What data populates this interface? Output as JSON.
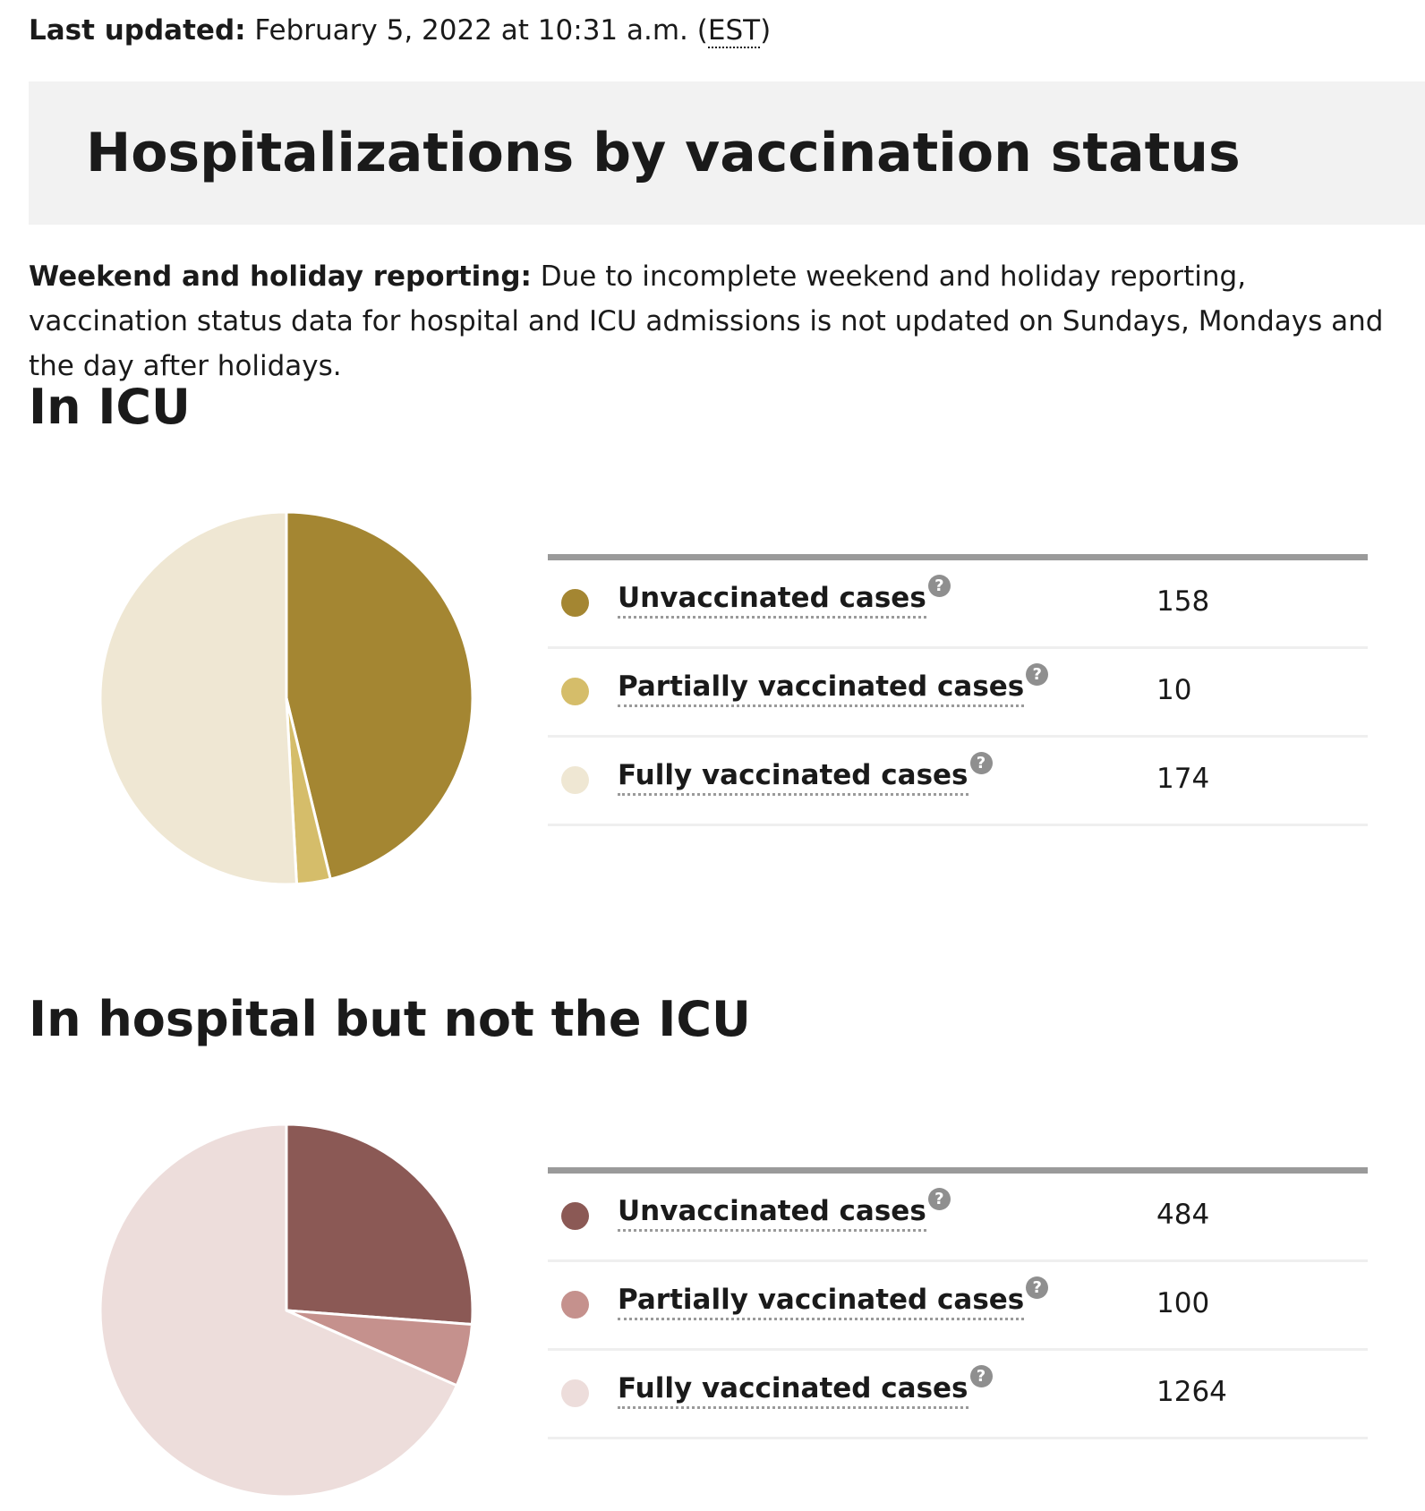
{
  "last_updated": {
    "label": "Last updated:",
    "date_text": " February 5, 2022 at 10:31 a.m. (",
    "timezone": "EST",
    "close_text": ")"
  },
  "page_title": "Hospitalizations by vaccination status",
  "notice": {
    "label": "Weekend and holiday reporting:",
    "text": " Due to incomplete weekend and holiday reporting, vaccination status data for hospital and ICU admissions is not updated on Sundays, Mondays and the day after holidays."
  },
  "help_icon_glyph": "?",
  "sections": [
    {
      "heading": "In ICU",
      "rows": [
        {
          "label": "Unvaccinated cases",
          "value": "158",
          "color": "#a48632",
          "icon": "help-icon"
        },
        {
          "label": "Partially vaccinated cases",
          "value": "10",
          "color": "#d5bd6a",
          "icon": "help-icon"
        },
        {
          "label": "Fully vaccinated cases",
          "value": "174",
          "color": "#efe7d3",
          "icon": "help-icon"
        }
      ]
    },
    {
      "heading": "In hospital but not the ICU",
      "rows": [
        {
          "label": "Unvaccinated cases",
          "value": "484",
          "color": "#8b5955",
          "icon": "help-icon"
        },
        {
          "label": "Partially vaccinated cases",
          "value": "100",
          "color": "#c5918d",
          "icon": "help-icon"
        },
        {
          "label": "Fully vaccinated cases",
          "value": "1264",
          "color": "#eddddb",
          "icon": "help-icon"
        }
      ]
    }
  ],
  "chart_data": [
    {
      "type": "pie",
      "title": "In ICU",
      "categories": [
        "Unvaccinated cases",
        "Partially vaccinated cases",
        "Fully vaccinated cases"
      ],
      "values": [
        158,
        10,
        174
      ],
      "colors": [
        "#a48632",
        "#d5bd6a",
        "#efe7d3"
      ]
    },
    {
      "type": "pie",
      "title": "In hospital but not the ICU",
      "categories": [
        "Unvaccinated cases",
        "Partially vaccinated cases",
        "Fully vaccinated cases"
      ],
      "values": [
        484,
        100,
        1264
      ],
      "colors": [
        "#8b5955",
        "#c5918d",
        "#eddddb"
      ]
    }
  ]
}
